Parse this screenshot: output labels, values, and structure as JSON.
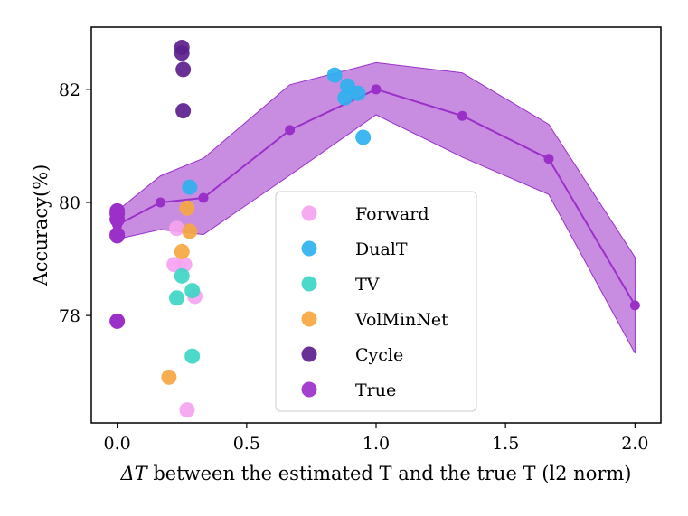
{
  "chart_data": {
    "type": "scatter",
    "xlabel_math": "ΔT",
    "xlabel": " between the estimated T and the true T (l2 norm)",
    "ylabel": "Accuracy(%)",
    "xlim": [
      -0.1,
      2.1
    ],
    "ylim": [
      76.1,
      83.1
    ],
    "xticks": [
      0.0,
      0.5,
      1.0,
      1.5,
      2.0
    ],
    "xtick_labels": [
      "0.0",
      "0.5",
      "1.0",
      "1.5",
      "2.0"
    ],
    "yticks": [
      78,
      80,
      82
    ],
    "ytick_labels": [
      "78",
      "80",
      "82"
    ],
    "legend_position": "center",
    "band": {
      "name": "True",
      "color": "#9b30c9",
      "x": [
        0.0,
        0.167,
        0.333,
        0.667,
        1.0,
        1.333,
        1.667,
        2.0
      ],
      "upper": [
        79.85,
        80.47,
        80.78,
        82.08,
        82.47,
        82.29,
        81.38,
        79.03
      ],
      "lower": [
        79.35,
        79.52,
        79.43,
        80.48,
        81.55,
        80.8,
        80.14,
        77.33
      ]
    },
    "series": [
      {
        "name": "Forward",
        "color": "#f5a3f0",
        "points": [
          [
            0.22,
            78.9
          ],
          [
            0.26,
            78.9
          ],
          [
            0.3,
            78.34
          ],
          [
            0.27,
            76.33
          ],
          [
            0.23,
            79.54
          ]
        ]
      },
      {
        "name": "DualT",
        "color": "#2fb1ef",
        "points": [
          [
            0.84,
            82.25
          ],
          [
            0.89,
            82.06
          ],
          [
            0.93,
            81.93
          ],
          [
            0.88,
            81.85
          ],
          [
            0.95,
            81.15
          ],
          [
            0.28,
            80.27
          ]
        ]
      },
      {
        "name": "TV",
        "color": "#3ed6c4",
        "points": [
          [
            0.25,
            78.7
          ],
          [
            0.29,
            78.44
          ],
          [
            0.23,
            78.31
          ],
          [
            0.29,
            77.28
          ]
        ]
      },
      {
        "name": "VolMinNet",
        "color": "#f5a742",
        "points": [
          [
            0.25,
            79.13
          ],
          [
            0.27,
            79.9
          ],
          [
            0.28,
            79.49
          ],
          [
            0.2,
            76.91
          ]
        ]
      },
      {
        "name": "Cycle",
        "color": "#5c1f8d",
        "points": [
          [
            0.25,
            82.74
          ],
          [
            0.25,
            82.64
          ],
          [
            0.255,
            82.35
          ],
          [
            0.255,
            81.62
          ]
        ]
      },
      {
        "name": "True",
        "color": "#9b30c9",
        "line": true,
        "points": [
          [
            0.0,
            79.6
          ],
          [
            0.167,
            80.0
          ],
          [
            0.333,
            80.08
          ],
          [
            0.667,
            81.28
          ],
          [
            1.0,
            82.0
          ],
          [
            1.333,
            81.53
          ],
          [
            1.667,
            80.77
          ],
          [
            2.0,
            78.18
          ]
        ],
        "extra_points": [
          [
            0.0,
            79.85
          ],
          [
            0.0,
            79.8
          ],
          [
            0.0,
            79.7
          ],
          [
            0.0,
            79.43
          ],
          [
            0.0,
            79.41
          ],
          [
            0.0,
            77.9
          ]
        ]
      }
    ]
  }
}
